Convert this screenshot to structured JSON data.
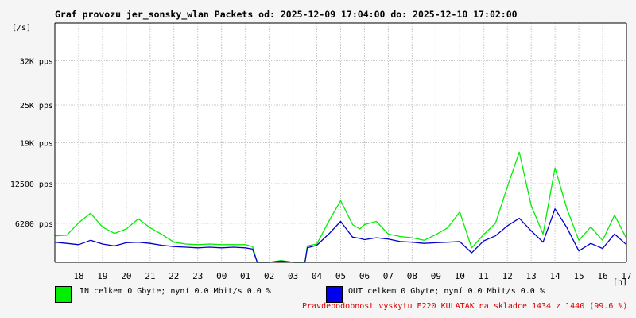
{
  "chart_data": {
    "type": "line",
    "title": "Graf provozu jer_sonsky_wlan Packets od: 2025-12-09 17:04:00 do: 2025-12-10 17:02:00",
    "ylabel_unit": "[/s]",
    "xlabel_unit": "[h]",
    "yticks": [
      {
        "value": 6200,
        "label": "6200 pps"
      },
      {
        "value": 12500,
        "label": "12500 pps"
      },
      {
        "value": 19000,
        "label": "19K pps"
      },
      {
        "value": 25000,
        "label": "25K pps"
      },
      {
        "value": 32000,
        "label": "32K pps"
      }
    ],
    "ylim": [
      0,
      38000
    ],
    "xticks": [
      "18",
      "19",
      "20",
      "21",
      "22",
      "23",
      "00",
      "01",
      "02",
      "03",
      "04",
      "05",
      "06",
      "07",
      "08",
      "09",
      "10",
      "11",
      "12",
      "13",
      "14",
      "15",
      "16",
      "17"
    ],
    "grid": true,
    "x": [
      17.0,
      17.5,
      18.0,
      18.5,
      19.0,
      19.5,
      20.0,
      20.5,
      21.0,
      21.5,
      22.0,
      22.5,
      23.0,
      23.5,
      24.0,
      24.5,
      25.0,
      25.3,
      25.5,
      26.0,
      26.5,
      27.0,
      27.5,
      27.6,
      28.0,
      28.5,
      29.0,
      29.5,
      29.8,
      30.0,
      30.5,
      31.0,
      31.5,
      32.0,
      32.5,
      33.0,
      33.5,
      34.0,
      34.5,
      35.0,
      35.5,
      36.0,
      36.5,
      37.0,
      37.5,
      38.0,
      38.5,
      39.0,
      39.5,
      40.0,
      40.5,
      41.0
    ],
    "series": [
      {
        "name": "IN",
        "color": "#00ee00",
        "values": [
          4200,
          4300,
          6300,
          7800,
          5600,
          4600,
          5300,
          6900,
          5500,
          4400,
          3200,
          2900,
          2800,
          2900,
          2800,
          2800,
          2800,
          2500,
          0,
          0,
          300,
          0,
          0,
          2600,
          2900,
          6500,
          9800,
          6000,
          5300,
          6000,
          6500,
          4500,
          4100,
          3900,
          3500,
          4400,
          5500,
          8000,
          2300,
          4400,
          6200,
          12000,
          17500,
          9000,
          4500,
          15000,
          8500,
          3500,
          5600,
          3500,
          7500,
          3800
        ]
      },
      {
        "name": "OUT",
        "color": "#0000cc",
        "values": [
          3200,
          3000,
          2800,
          3500,
          2900,
          2600,
          3100,
          3200,
          3000,
          2700,
          2500,
          2400,
          2300,
          2400,
          2300,
          2400,
          2300,
          2100,
          0,
          0,
          200,
          0,
          0,
          2300,
          2700,
          4500,
          6500,
          4000,
          3800,
          3600,
          3900,
          3700,
          3300,
          3200,
          3000,
          3100,
          3200,
          3300,
          1500,
          3400,
          4200,
          5800,
          7000,
          5000,
          3200,
          8500,
          5500,
          1800,
          3000,
          2200,
          4500,
          2800
        ]
      }
    ]
  },
  "legend": {
    "in": {
      "color": "#00ee00",
      "text": "IN celkem 0 Gbyte; nyní   0.0 Mbit/s 0.0 %"
    },
    "out": {
      "color": "#0000ee",
      "text": "OUT celkem 0 Gbyte; nyní   0.0 Mbit/s 0.0 %"
    }
  },
  "footer": {
    "text": "Pravdepodobnost vyskytu E220 KULATAK na skladce 1434 z 1440 (99.6 %)",
    "color": "#e00000"
  }
}
